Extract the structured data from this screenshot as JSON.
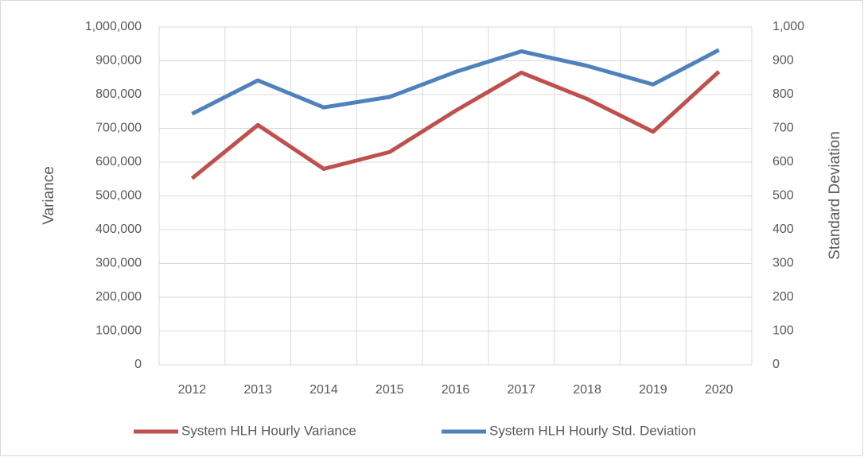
{
  "chart_data": {
    "type": "line",
    "categories": [
      "2012",
      "2013",
      "2014",
      "2015",
      "2016",
      "2017",
      "2018",
      "2019",
      "2020"
    ],
    "series": [
      {
        "name": "System HLH Hourly Variance",
        "color": "#c0504d",
        "axis": "y",
        "values": [
          552000,
          710000,
          580000,
          630000,
          752000,
          865000,
          787000,
          690000,
          868000
        ]
      },
      {
        "name": "System HLH Hourly Std. Deviation",
        "color": "#4f81bd",
        "axis": "y2",
        "values": [
          743,
          842,
          762,
          793,
          867,
          928,
          885,
          830,
          932
        ]
      }
    ],
    "ylabel": "Variance",
    "y2label": "Standard Deviation",
    "ylim": [
      0,
      1000000
    ],
    "yticks": [
      0,
      {
        "value": 100000,
        "label": "100,000"
      },
      {
        "value": 200000,
        "label": "200,000"
      },
      {
        "value": 300000,
        "label": "300,000"
      },
      {
        "value": 400000,
        "label": "400,000"
      },
      {
        "value": 500000,
        "label": "500,000"
      },
      {
        "value": 600000,
        "label": "600,000"
      },
      {
        "value": 700000,
        "label": "700,000"
      },
      {
        "value": 800000,
        "label": "800,000"
      },
      {
        "value": 900000,
        "label": "900,000"
      },
      {
        "value": 1000000,
        "label": "1,000,000"
      }
    ],
    "y2lim": [
      0,
      1000
    ],
    "y2ticks": [
      0,
      100,
      200,
      300,
      400,
      500,
      600,
      700,
      800,
      900,
      {
        "value": 1000,
        "label": "1,000"
      }
    ],
    "grid": true,
    "legend": "bottom"
  }
}
